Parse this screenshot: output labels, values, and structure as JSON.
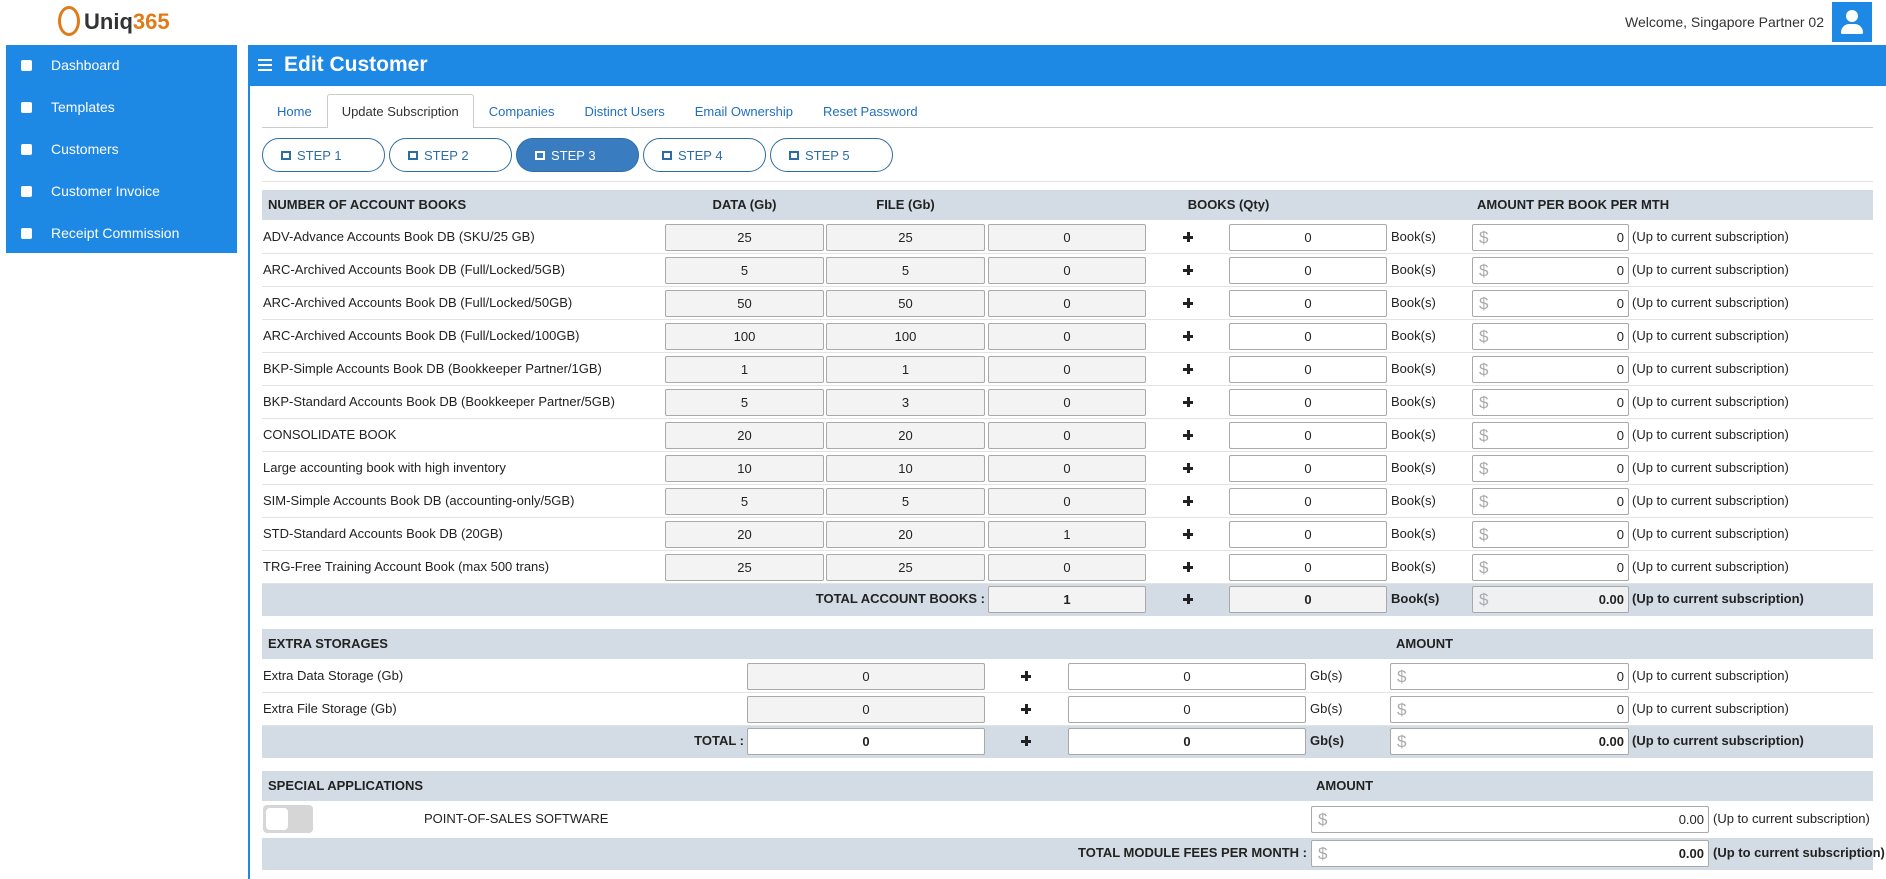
{
  "header": {
    "logo_main": "Uniq",
    "logo_accent": "365",
    "welcome": "Welcome, Singapore Partner 02"
  },
  "sidebar": [
    "Dashboard",
    "Templates",
    "Customers",
    "Customer Invoice",
    "Receipt Commission"
  ],
  "page_title": "Edit Customer",
  "tabs": [
    "Home",
    "Update Subscription",
    "Companies",
    "Distinct Users",
    "Email Ownership",
    "Reset Password"
  ],
  "active_tab": 1,
  "steps": [
    "STEP 1",
    "STEP 2",
    "STEP 3",
    "STEP 4",
    "STEP 5"
  ],
  "active_step": 2,
  "labels": {
    "unit_books": "Book(s)",
    "unit_gb": "Gb(s)",
    "currency": "$",
    "note": "(Up to current subscription)"
  },
  "books": {
    "headers": [
      "NUMBER OF ACCOUNT BOOKS",
      "DATA (Gb)",
      "FILE (Gb)",
      "BOOKS (Qty)",
      "AMOUNT PER BOOK PER MTH"
    ],
    "rows": [
      {
        "name": "ADV-Advance Accounts Book DB (SKU/25 GB)",
        "data": 25,
        "file": 25,
        "current": 0,
        "add": 0,
        "amount": 0
      },
      {
        "name": "ARC-Archived Accounts Book DB (Full/Locked/5GB)",
        "data": 5,
        "file": 5,
        "current": 0,
        "add": 0,
        "amount": 0
      },
      {
        "name": "ARC-Archived Accounts Book DB (Full/Locked/50GB)",
        "data": 50,
        "file": 50,
        "current": 0,
        "add": 0,
        "amount": 0
      },
      {
        "name": "ARC-Archived Accounts Book DB (Full/Locked/100GB)",
        "data": 100,
        "file": 100,
        "current": 0,
        "add": 0,
        "amount": 0
      },
      {
        "name": "BKP-Simple Accounts Book DB (Bookkeeper Partner/1GB)",
        "data": 1,
        "file": 1,
        "current": 0,
        "add": 0,
        "amount": 0
      },
      {
        "name": "BKP-Standard Accounts Book DB (Bookkeeper Partner/5GB)",
        "data": 5,
        "file": 3,
        "current": 0,
        "add": 0,
        "amount": 0
      },
      {
        "name": "CONSOLIDATE BOOK",
        "data": 20,
        "file": 20,
        "current": 0,
        "add": 0,
        "amount": 0
      },
      {
        "name": "Large accounting book with high inventory",
        "data": 10,
        "file": 10,
        "current": 0,
        "add": 0,
        "amount": 0
      },
      {
        "name": "SIM-Simple Accounts Book DB (accounting-only/5GB)",
        "data": 5,
        "file": 5,
        "current": 0,
        "add": 0,
        "amount": 0
      },
      {
        "name": "STD-Standard Accounts Book DB (20GB)",
        "data": 20,
        "file": 20,
        "current": 1,
        "add": 0,
        "amount": 0
      },
      {
        "name": "TRG-Free Training Account Book (max 500 trans)",
        "data": 25,
        "file": 25,
        "current": 0,
        "add": 0,
        "amount": 0
      }
    ],
    "total": {
      "label": "TOTAL ACCOUNT BOOKS :",
      "current": 1,
      "add": 0,
      "amount": "0.00"
    }
  },
  "storages": {
    "header": "EXTRA STORAGES",
    "amount_header": "AMOUNT",
    "rows": [
      {
        "name": "Extra Data Storage (Gb)",
        "current": 0,
        "add": 0,
        "amount": 0
      },
      {
        "name": "Extra File Storage (Gb)",
        "current": 0,
        "add": 0,
        "amount": 0
      }
    ],
    "total": {
      "label": "TOTAL :",
      "current": 0,
      "add": 0,
      "amount": "0.00"
    }
  },
  "applications": {
    "header": "SPECIAL APPLICATIONS",
    "amount_header": "AMOUNT",
    "rows": [
      {
        "name": "POINT-OF-SALES SOFTWARE",
        "enabled": false,
        "amount": "0.00"
      }
    ],
    "total": {
      "label": "TOTAL MODULE FEES PER MONTH :",
      "amount": "0.00"
    }
  }
}
